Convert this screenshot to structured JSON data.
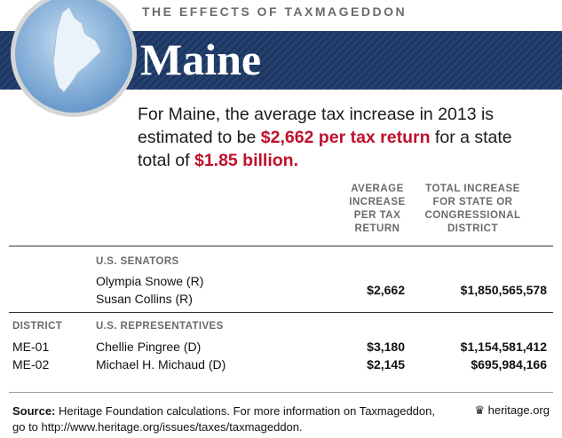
{
  "header": {
    "kicker": "THE EFFECTS OF TAXMAGEDDON",
    "title": "Maine"
  },
  "intro": {
    "parts": [
      "For Maine, the average tax increase in 2013 is estimated to be ",
      "$2,662 per tax return",
      " for a state total of ",
      "$1.85 billion."
    ]
  },
  "table": {
    "columns": [
      [
        "AVERAGE",
        "INCREASE",
        "PER TAX",
        "RETURN"
      ],
      [
        "TOTAL INCREASE",
        "FOR STATE OR",
        "CONGRESSIONAL",
        "DISTRICT"
      ]
    ],
    "senators": {
      "label": "U.S. SENATORS",
      "names": [
        "Olympia Snowe (R)",
        "Susan Collins (R)"
      ],
      "average": "$2,662",
      "total": "$1,850,565,578"
    },
    "representatives": {
      "district_label": "DISTRICT",
      "label": "U.S. REPRESENTATIVES",
      "rows": [
        [
          "ME-01",
          "Chellie Pingree (D)",
          "$3,180",
          "$1,154,581,412"
        ],
        [
          "ME-02",
          "Michael H. Michaud (D)",
          "$2,145",
          "$695,984,166"
        ]
      ]
    }
  },
  "footer": {
    "source_label": "Source:",
    "source_text": "Heritage Foundation calculations. For more information on Taxmageddon, go to http://www.heritage.org/issues/taxes/taxmageddon.",
    "credit": "heritage.org"
  }
}
